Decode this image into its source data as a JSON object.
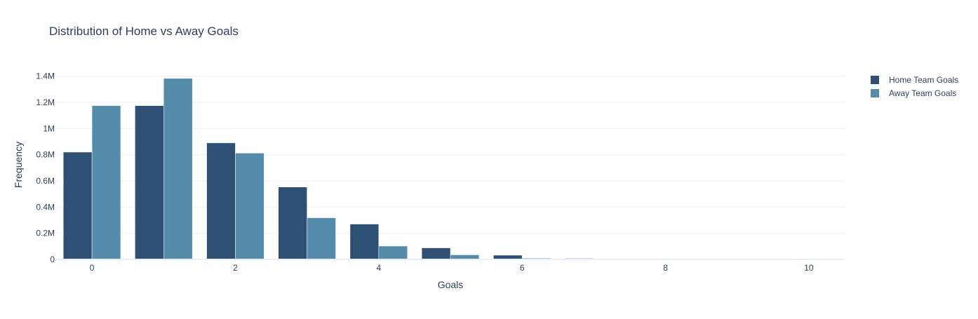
{
  "chart_data": {
    "type": "bar",
    "title": "Distribution of Home vs Away Goals",
    "xlabel": "Goals",
    "ylabel": "Frequency",
    "x": [
      0,
      1,
      2,
      3,
      4,
      5,
      6,
      7,
      8,
      9,
      10
    ],
    "x_ticks": [
      0,
      2,
      4,
      6,
      8,
      10
    ],
    "x_tick_labels": [
      "0",
      "2",
      "4",
      "6",
      "8",
      "10"
    ],
    "xlim": [
      -0.5,
      10.5
    ],
    "y_ticks": [
      0,
      200000,
      400000,
      600000,
      800000,
      1000000,
      1200000,
      1400000
    ],
    "y_tick_labels": [
      "0",
      "0.2M",
      "0.4M",
      "0.6M",
      "0.8M",
      "1M",
      "1.2M",
      "1.4M"
    ],
    "ylim": [
      0,
      1500000
    ],
    "grid": "horizontal",
    "legend_position": "top-right",
    "series": [
      {
        "name": "Home Team Goals",
        "color": "#2d4f73",
        "values": [
          820000,
          1175000,
          890000,
          553000,
          270000,
          88000,
          32000,
          8000,
          2000,
          500,
          100
        ]
      },
      {
        "name": "Away Team Goals",
        "color": "#558cab",
        "values": [
          1175000,
          1383000,
          812000,
          318000,
          102000,
          35000,
          9000,
          3000,
          6000,
          200,
          6000
        ]
      }
    ]
  }
}
